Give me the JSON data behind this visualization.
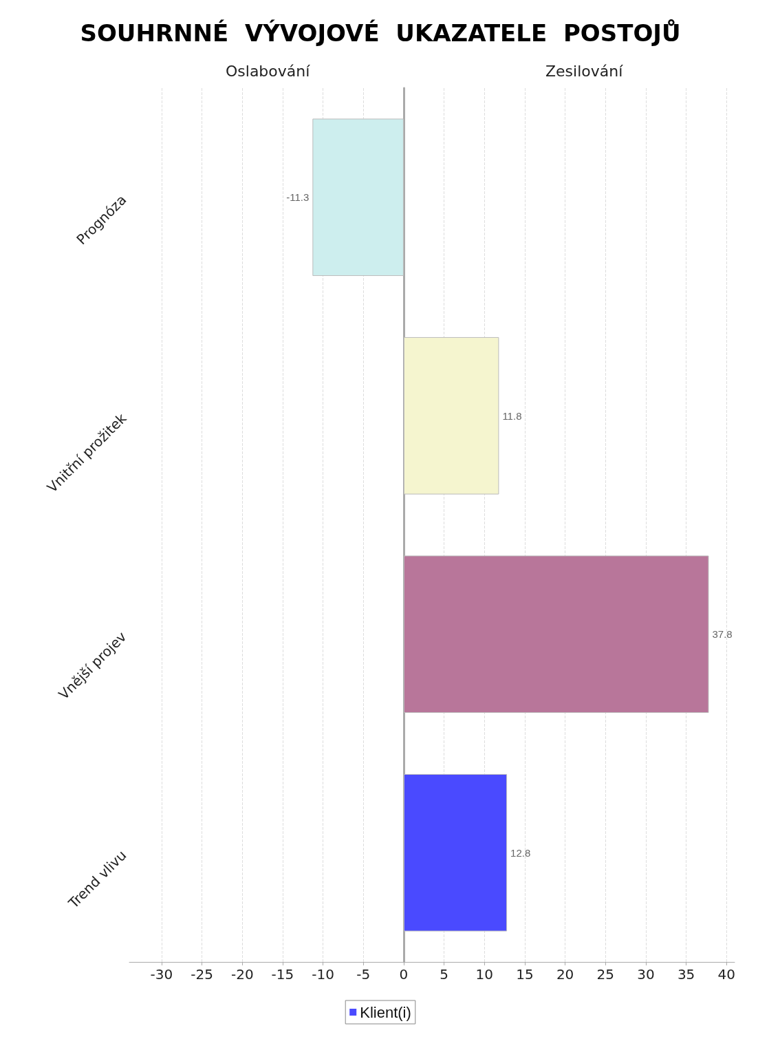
{
  "chart_data": {
    "type": "bar",
    "orientation": "horizontal",
    "title": "SOUHRNNÉ  VÝVOJOVÉ  UKAZATELE  POSTOJŮ",
    "categories": [
      "Prognóza",
      "Vnitřní prožitek",
      "Vnější projev",
      "Trend vlivu"
    ],
    "series": [
      {
        "name": "Klient(i)",
        "color": "#4a4aff",
        "values": [
          -11.3,
          11.8,
          37.8,
          12.8
        ],
        "colors": [
          "#cdeeee",
          "#f5f5cf",
          "#b8769a",
          "#4a4aff"
        ]
      }
    ],
    "xlim": [
      -34,
      41
    ],
    "xticks": [
      -30,
      -25,
      -20,
      -15,
      -10,
      -5,
      0,
      5,
      10,
      15,
      20,
      25,
      30,
      35,
      40
    ],
    "annotations": [
      "Oslabování",
      "Zesilování"
    ],
    "data_labels": true,
    "grid": "x",
    "legend": "bottom"
  }
}
